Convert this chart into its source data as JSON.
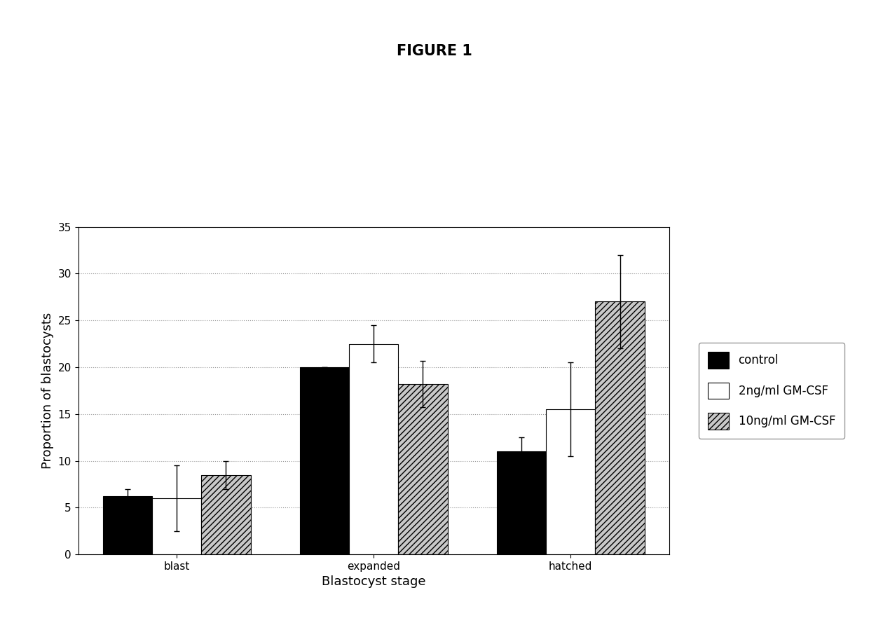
{
  "title": "FIGURE 1",
  "xlabel": "Blastocyst stage",
  "ylabel": "Proportion of blastocysts",
  "categories": [
    "blast",
    "expanded",
    "hatched"
  ],
  "series": {
    "control": {
      "values": [
        6.2,
        20.0,
        11.0
      ],
      "errors": [
        0.8,
        0.0,
        1.5
      ],
      "color": "#000000",
      "hatch": null,
      "label": "control"
    },
    "2ng_gmcsf": {
      "values": [
        6.0,
        22.5,
        15.5
      ],
      "errors": [
        3.5,
        2.0,
        5.0
      ],
      "color": "#ffffff",
      "hatch": null,
      "label": "2ng/ml GM-CSF"
    },
    "10ng_gmcsf": {
      "values": [
        8.5,
        18.2,
        27.0
      ],
      "errors": [
        1.5,
        2.5,
        5.0
      ],
      "color": "#c8c8c8",
      "hatch": "////",
      "label": "10ng/ml GM-CSF"
    }
  },
  "ylim": [
    0,
    35
  ],
  "yticks": [
    0,
    5,
    10,
    15,
    20,
    25,
    30,
    35
  ],
  "bar_width": 0.25,
  "background_color": "#ffffff",
  "plot_background": "#ffffff",
  "grid_color": "#999999",
  "title_fontsize": 15,
  "axis_label_fontsize": 13,
  "tick_fontsize": 11,
  "legend_fontsize": 12
}
